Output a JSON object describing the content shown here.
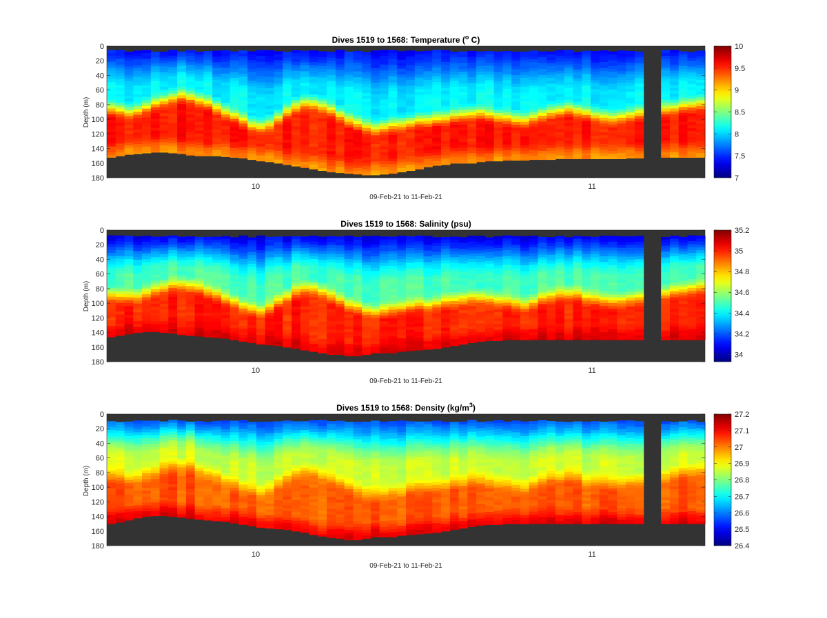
{
  "chart_data": [
    {
      "type": "heatmap",
      "title": "Dives 1519 to 1568: Temperature (",
      "title_sup": "o",
      "title_tail": " C)",
      "xlabel": "09-Feb-21 to 11-Feb-21",
      "ylabel": "Depth (m)",
      "ylim": [
        180,
        0
      ],
      "yticks": [
        "0",
        "20",
        "40",
        "60",
        "80",
        "100",
        "120",
        "140",
        "160",
        "180"
      ],
      "xticks": [
        "10",
        "11"
      ],
      "colorbar": {
        "min": 7,
        "max": 10,
        "colormap": "jet",
        "tick_values": [
          7,
          7.5,
          8,
          8.5,
          9,
          9.5,
          10
        ],
        "tick_labels": [
          "7",
          "7.5",
          "8",
          "8.5",
          "9",
          "9.5",
          "10"
        ]
      },
      "field": {
        "surface_value": 7.4,
        "mid_value": 8.1,
        "deep_value": 9.55,
        "bottom_value": 9.2,
        "thermocline_depth": [
          88,
          90,
          92,
          90,
          85,
          80,
          76,
          72,
          70,
          72,
          76,
          80,
          85,
          92,
          98,
          104,
          110,
          112,
          108,
          100,
          92,
          84,
          80,
          80,
          84,
          90,
          96,
          104,
          108,
          112,
          114,
          112,
          110,
          108,
          106,
          104,
          104,
          102,
          100,
          98,
          96,
          94,
          94,
          96,
          98,
          100,
          102,
          104,
          100,
          96,
          92,
          90,
          88,
          90,
          94,
          96,
          98,
          100,
          98,
          96,
          94,
          92,
          90,
          88,
          86,
          84,
          82,
          80
        ]
      },
      "seafloor_depth": [
        152,
        150,
        148,
        147,
        146,
        145,
        145,
        146,
        147,
        149,
        150,
        150,
        150,
        151,
        152,
        153,
        155,
        157,
        158,
        160,
        162,
        164,
        166,
        168,
        170,
        172,
        173,
        174,
        175,
        176,
        176,
        175,
        174,
        172,
        170,
        168,
        165,
        163,
        162,
        160,
        160,
        160,
        158,
        157,
        157,
        156,
        156,
        156,
        155,
        155,
        155,
        154,
        154,
        154,
        154,
        154,
        154,
        154,
        154,
        153,
        153,
        153,
        152,
        152,
        152,
        152,
        152,
        152
      ],
      "surface_gap_depth": 5
    },
    {
      "type": "heatmap",
      "title": "Dives 1519 to 1568: Salinity (psu)",
      "title_sup": "",
      "title_tail": "",
      "xlabel": "09-Feb-21 to 11-Feb-21",
      "ylabel": "Depth (m)",
      "ylim": [
        180,
        0
      ],
      "yticks": [
        "0",
        "20",
        "40",
        "60",
        "80",
        "100",
        "120",
        "140",
        "160",
        "180"
      ],
      "xticks": [
        "10",
        "11"
      ],
      "colorbar": {
        "min": 33.93,
        "max": 35.2,
        "colormap": "jet",
        "tick_values": [
          34,
          34.2,
          34.4,
          34.6,
          34.8,
          35,
          35.2
        ],
        "tick_labels": [
          "34",
          "34.2",
          "34.4",
          "34.6",
          "34.8",
          "35",
          "35.2"
        ]
      },
      "field": {
        "surface_value": 34.05,
        "mid_value": 34.5,
        "deep_value": 35.0,
        "bottom_value": 35.08,
        "thermocline_depth": [
          90,
          92,
          94,
          92,
          88,
          84,
          80,
          78,
          76,
          78,
          82,
          86,
          90,
          96,
          100,
          106,
          110,
          112,
          108,
          100,
          92,
          86,
          82,
          82,
          86,
          92,
          98,
          104,
          108,
          112,
          114,
          112,
          110,
          108,
          106,
          104,
          104,
          102,
          100,
          98,
          96,
          94,
          94,
          96,
          98,
          100,
          102,
          104,
          100,
          96,
          92,
          90,
          88,
          90,
          94,
          96,
          98,
          100,
          98,
          96,
          94,
          92,
          90,
          88,
          86,
          84,
          82,
          80
        ]
      },
      "seafloor_depth": [
        146,
        144,
        142,
        140,
        139,
        139,
        140,
        141,
        143,
        144,
        145,
        146,
        147,
        148,
        150,
        152,
        154,
        156,
        157,
        158,
        160,
        162,
        164,
        166,
        168,
        170,
        170,
        172,
        172,
        170,
        168,
        168,
        168,
        166,
        165,
        164,
        163,
        162,
        160,
        158,
        156,
        154,
        152,
        151,
        151,
        150,
        150,
        150,
        150,
        150,
        150,
        150,
        150,
        150,
        150,
        150,
        150,
        150,
        150,
        150,
        150,
        150,
        150,
        150,
        150,
        150,
        150,
        150
      ],
      "surface_gap_depth": 7
    },
    {
      "type": "heatmap",
      "title": "Dives 1519 to 1568: Density (kg/m",
      "title_sup": "3",
      "title_tail": ")",
      "xlabel": "09-Feb-21 to 11-Feb-21",
      "ylabel": "Depth (m)",
      "ylim": [
        180,
        0
      ],
      "yticks": [
        "0",
        "20",
        "40",
        "60",
        "80",
        "100",
        "120",
        "140",
        "160",
        "180"
      ],
      "xticks": [
        "10",
        "11"
      ],
      "colorbar": {
        "min": 26.4,
        "max": 27.2,
        "colormap": "jet",
        "tick_values": [
          26.4,
          26.5,
          26.6,
          26.7,
          26.8,
          26.9,
          27,
          27.1,
          27.2
        ],
        "tick_labels": [
          "26.4",
          "26.5",
          "26.6",
          "26.7",
          "26.8",
          "26.9",
          "27",
          "27.1",
          "27.2"
        ]
      },
      "field": {
        "surface_value": 26.55,
        "mid_value": 26.86,
        "deep_value": 27.03,
        "bottom_value": 27.12,
        "thermocline_depth": [
          86,
          88,
          90,
          88,
          84,
          80,
          76,
          74,
          72,
          74,
          78,
          82,
          86,
          92,
          98,
          102,
          106,
          108,
          104,
          96,
          90,
          84,
          80,
          80,
          84,
          90,
          96,
          102,
          106,
          110,
          112,
          110,
          108,
          106,
          104,
          102,
          102,
          100,
          98,
          96,
          94,
          92,
          92,
          94,
          96,
          98,
          100,
          102,
          98,
          94,
          90,
          88,
          86,
          88,
          92,
          94,
          96,
          98,
          96,
          94,
          92,
          90,
          88,
          86,
          84,
          82,
          80,
          78
        ]
      },
      "seafloor_depth": [
        150,
        148,
        145,
        142,
        140,
        139,
        139,
        140,
        141,
        143,
        144,
        145,
        146,
        147,
        149,
        151,
        153,
        155,
        156,
        157,
        158,
        160,
        162,
        165,
        167,
        169,
        170,
        172,
        172,
        170,
        168,
        168,
        168,
        166,
        165,
        164,
        163,
        162,
        160,
        158,
        156,
        154,
        152,
        151,
        151,
        150,
        150,
        150,
        150,
        150,
        150,
        150,
        150,
        150,
        150,
        150,
        150,
        150,
        150,
        150,
        150,
        150,
        150,
        150,
        150,
        150,
        150,
        150
      ],
      "surface_gap_depth": 8
    }
  ],
  "colors": {
    "seafloor": "#333333",
    "background": "#ffffff",
    "axis": "#262626"
  }
}
